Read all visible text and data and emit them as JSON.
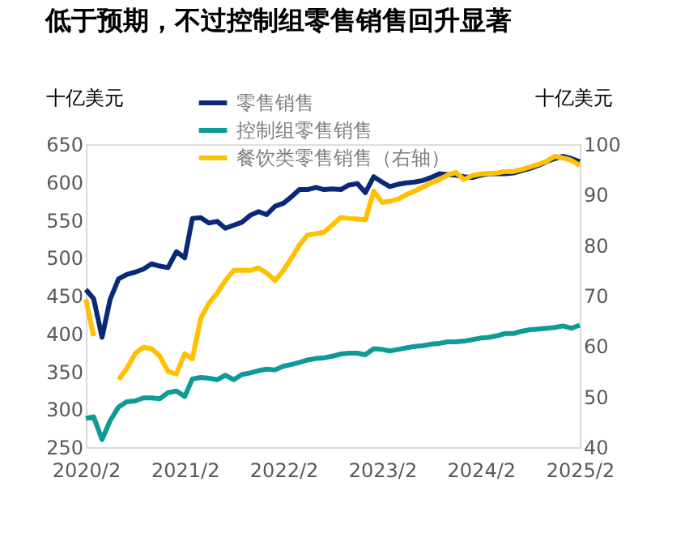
{
  "chart_data": {
    "type": "line",
    "title": "低于预期，不过控制组零售销售回升显著",
    "ylabel": "十亿美元",
    "y2label": "十亿美元",
    "x": [
      "2020-02",
      "2020-03",
      "2020-04",
      "2020-05",
      "2020-06",
      "2020-07",
      "2020-08",
      "2020-09",
      "2020-10",
      "2020-11",
      "2020-12",
      "2021-01",
      "2021-02",
      "2021-03",
      "2021-04",
      "2021-05",
      "2021-06",
      "2021-07",
      "2021-08",
      "2021-09",
      "2021-10",
      "2021-11",
      "2021-12",
      "2022-01",
      "2022-02",
      "2022-03",
      "2022-04",
      "2022-05",
      "2022-06",
      "2022-07",
      "2022-08",
      "2022-09",
      "2022-10",
      "2022-11",
      "2022-12",
      "2023-01",
      "2023-02",
      "2023-03",
      "2023-04",
      "2023-05",
      "2023-06",
      "2023-07",
      "2023-08",
      "2023-09",
      "2023-10",
      "2023-11",
      "2023-12",
      "2024-01",
      "2024-02",
      "2024-03",
      "2024-04",
      "2024-05",
      "2024-06",
      "2024-07",
      "2024-08",
      "2024-09",
      "2024-10",
      "2024-11",
      "2024-12",
      "2025-01",
      "2025-02"
    ],
    "series": [
      {
        "name": "零售销售",
        "color": "#0a2a78",
        "values": [
          458,
          446,
          395,
          445,
          472,
          478,
          481,
          485,
          492,
          489,
          487,
          508,
          500,
          552,
          553,
          546,
          548,
          539,
          543,
          547,
          556,
          561,
          557,
          568,
          572,
          580,
          590,
          590,
          593,
          590,
          591,
          590,
          596,
          598,
          586,
          607,
          600,
          594,
          597,
          599,
          600,
          602,
          606,
          611,
          610,
          609,
          607,
          606,
          609,
          611,
          611,
          611,
          612,
          615,
          618,
          622,
          627,
          631,
          634,
          631,
          627
        ]
      },
      {
        "name": "控制组零售销售",
        "color": "#0e9a97",
        "values": [
          288,
          290,
          260,
          285,
          303,
          310,
          311,
          315,
          315,
          314,
          322,
          324,
          317,
          340,
          342,
          341,
          339,
          345,
          339,
          346,
          348,
          351,
          353,
          352,
          357,
          359,
          362,
          365,
          367,
          368,
          370,
          373,
          374,
          374,
          372,
          380,
          379,
          377,
          379,
          381,
          383,
          384,
          386,
          387,
          389,
          389,
          390,
          392,
          394,
          395,
          397,
          400,
          400,
          403,
          405,
          406,
          407,
          408,
          410,
          407,
          411
        ]
      },
      {
        "name": "餐饮类零售销售（右轴）",
        "color": "#ffc000",
        "axis": "y2",
        "values": [
          69.3,
          62,
          null,
          null,
          53.4,
          55.5,
          58.5,
          59.8,
          59.5,
          58,
          55,
          54.5,
          58.5,
          57.5,
          65.5,
          68.5,
          70.5,
          73,
          75,
          75,
          75,
          75.5,
          74.5,
          73,
          75,
          77.3,
          80,
          82,
          82.3,
          82.6,
          84,
          85.5,
          85.3,
          85.2,
          85,
          90.7,
          88.5,
          88.7,
          89.1,
          90,
          90.7,
          91.5,
          92.3,
          93,
          93.9,
          94.4,
          93,
          93.8,
          94.1,
          94.2,
          94.3,
          94.6,
          94.6,
          95,
          95.5,
          96,
          96.6,
          97.6,
          97.3,
          96.8,
          95.8
        ]
      }
    ],
    "xlim": [
      "2020-02",
      "2025-02"
    ],
    "xticks": [
      {
        "value": "2020-02",
        "label": "2020/2"
      },
      {
        "value": "2021-02",
        "label": "2021/2"
      },
      {
        "value": "2022-02",
        "label": "2022/2"
      },
      {
        "value": "2023-02",
        "label": "2023/2"
      },
      {
        "value": "2024-02",
        "label": "2024/2"
      },
      {
        "value": "2025-02",
        "label": "2025/2"
      }
    ],
    "ylim": [
      250,
      650
    ],
    "yticks": [
      250,
      300,
      350,
      400,
      450,
      500,
      550,
      600,
      650
    ],
    "y2lim": [
      40,
      100
    ],
    "y2ticks": [
      40,
      50,
      60,
      70,
      80,
      90,
      100
    ],
    "legend": "top"
  }
}
